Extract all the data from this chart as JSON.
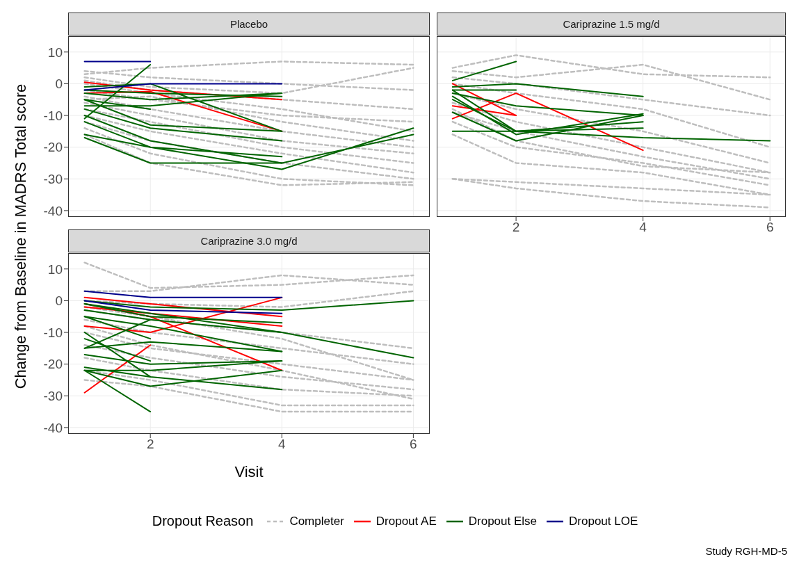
{
  "chart_data": [
    {
      "type": "line",
      "title": "Placebo",
      "ylabel": "Change from Baseline in MADRS Total score",
      "legend": "bottom",
      "legend_title": "Dropout Reason",
      "annotations": [
        "Study RGH-MD-5"
      ],
      "x": [
        1,
        2,
        4,
        6
      ],
      "xlim": [
        0.75,
        6.25
      ],
      "xticks": [
        2,
        4,
        6
      ],
      "ylim": [
        -42,
        15
      ],
      "yticks": [
        -40,
        -30,
        -20,
        -10,
        0,
        10
      ],
      "grid": true,
      "tick_labels": "y",
      "marker": "none",
      "series": [
        {
          "name": "Completer",
          "color": "#bebebe",
          "line_style": "dashed",
          "values": [
            4,
            2,
            0,
            -2
          ]
        },
        {
          "color": "#bebebe",
          "line_style": "dashed",
          "values": [
            3,
            5,
            7,
            6
          ]
        },
        {
          "color": "#bebebe",
          "line_style": "dashed",
          "values": [
            1,
            -2,
            -5,
            -8
          ]
        },
        {
          "color": "#bebebe",
          "line_style": "dashed",
          "values": [
            0,
            -3,
            -8,
            -15
          ]
        },
        {
          "color": "#bebebe",
          "line_style": "dashed",
          "values": [
            -2,
            -5,
            -10,
            -12
          ]
        },
        {
          "color": "#bebebe",
          "line_style": "dashed",
          "values": [
            -4,
            -8,
            -15,
            -20
          ]
        },
        {
          "color": "#bebebe",
          "line_style": "dashed",
          "values": [
            -6,
            -10,
            -18,
            -22
          ]
        },
        {
          "color": "#bebebe",
          "line_style": "dashed",
          "values": [
            -8,
            -12,
            -20,
            -25
          ]
        },
        {
          "color": "#bebebe",
          "line_style": "dashed",
          "values": [
            -10,
            -15,
            -22,
            -28
          ]
        },
        {
          "color": "#bebebe",
          "line_style": "dashed",
          "values": [
            -12,
            -18,
            -25,
            -30
          ]
        },
        {
          "color": "#bebebe",
          "line_style": "dashed",
          "values": [
            -14,
            -22,
            -30,
            -32
          ]
        },
        {
          "color": "#bebebe",
          "line_style": "dashed",
          "values": [
            -16,
            -25,
            -32,
            -31
          ]
        },
        {
          "color": "#bebebe",
          "line_style": "dashed",
          "values": [
            2,
            -1,
            -3,
            5
          ]
        },
        {
          "color": "#bebebe",
          "line_style": "dashed",
          "values": [
            -5,
            -4,
            -12,
            -18
          ]
        },
        {
          "name": "Dropout AE",
          "color": "#ff0000",
          "line_style": "solid",
          "values": [
            0.5,
            -2,
            -5,
            null
          ]
        },
        {
          "color": "#ff0000",
          "line_style": "solid",
          "values": [
            -3,
            -2.5,
            -15,
            null
          ]
        },
        {
          "name": "Dropout Else",
          "color": "#006400",
          "line_style": "solid",
          "values": [
            -11,
            6,
            null,
            null
          ]
        },
        {
          "color": "#006400",
          "line_style": "solid",
          "values": [
            -1,
            0,
            -15,
            null
          ]
        },
        {
          "color": "#006400",
          "line_style": "solid",
          "values": [
            -2,
            -3,
            -4,
            null
          ]
        },
        {
          "color": "#006400",
          "line_style": "solid",
          "values": [
            -3,
            -5,
            -3,
            null
          ]
        },
        {
          "color": "#006400",
          "line_style": "solid",
          "values": [
            -5,
            -8,
            null,
            null
          ]
        },
        {
          "color": "#006400",
          "line_style": "solid",
          "values": [
            -7,
            -7,
            -3,
            null
          ]
        },
        {
          "color": "#006400",
          "line_style": "solid",
          "values": [
            -5,
            -13,
            -15,
            null
          ]
        },
        {
          "color": "#006400",
          "line_style": "solid",
          "values": [
            -8,
            -14,
            -18,
            null
          ]
        },
        {
          "color": "#006400",
          "line_style": "solid",
          "values": [
            -12,
            -20,
            -23,
            null
          ]
        },
        {
          "color": "#006400",
          "line_style": "solid",
          "values": [
            -10,
            -18,
            -25,
            null
          ]
        },
        {
          "color": "#006400",
          "line_style": "solid",
          "values": [
            -16,
            -20,
            -27,
            -14
          ]
        },
        {
          "color": "#006400",
          "line_style": "solid",
          "values": [
            -17,
            -25,
            -25,
            -16
          ]
        },
        {
          "name": "Dropout LOE",
          "color": "#00008b",
          "line_style": "solid",
          "values": [
            7,
            7,
            null,
            null
          ]
        },
        {
          "color": "#00008b",
          "line_style": "solid",
          "values": [
            -2,
            0,
            0,
            null
          ]
        }
      ]
    },
    {
      "type": "line",
      "title": "Cariprazine 1.5 mg/d",
      "x": [
        1,
        2,
        4,
        6
      ],
      "xlim": [
        0.75,
        6.25
      ],
      "xticks": [
        2,
        4,
        6
      ],
      "ylim": [
        -42,
        15
      ],
      "yticks": [
        -40,
        -30,
        -20,
        -10,
        0,
        10
      ],
      "grid": true,
      "tick_labels": "x",
      "marker": "none",
      "series": [
        {
          "color": "#bebebe",
          "line_style": "dashed",
          "values": [
            5,
            9,
            3,
            2
          ]
        },
        {
          "color": "#bebebe",
          "line_style": "dashed",
          "values": [
            4,
            2,
            6,
            -5
          ]
        },
        {
          "color": "#bebebe",
          "line_style": "dashed",
          "values": [
            2,
            0,
            -5,
            -10
          ]
        },
        {
          "color": "#bebebe",
          "line_style": "dashed",
          "values": [
            0,
            -3,
            -8,
            -20
          ]
        },
        {
          "color": "#bebebe",
          "line_style": "dashed",
          "values": [
            -3,
            -8,
            -15,
            -25
          ]
        },
        {
          "color": "#bebebe",
          "line_style": "dashed",
          "values": [
            -6,
            -12,
            -20,
            -28
          ]
        },
        {
          "color": "#bebebe",
          "line_style": "dashed",
          "values": [
            -9,
            -15,
            -23,
            -30
          ]
        },
        {
          "color": "#bebebe",
          "line_style": "dashed",
          "values": [
            -12,
            -20,
            -25,
            -32
          ]
        },
        {
          "color": "#bebebe",
          "line_style": "dashed",
          "values": [
            -16,
            -25,
            -28,
            -35
          ]
        },
        {
          "color": "#bebebe",
          "line_style": "dashed",
          "values": [
            -30,
            -31,
            -33,
            -35
          ]
        },
        {
          "color": "#bebebe",
          "line_style": "dashed",
          "values": [
            -30,
            -33,
            -37,
            -39
          ]
        },
        {
          "color": "#bebebe",
          "line_style": "dashed",
          "values": [
            -8,
            -18,
            -26,
            -28
          ]
        },
        {
          "color": "#ff0000",
          "line_style": "solid",
          "values": [
            0,
            -10,
            null,
            null
          ]
        },
        {
          "color": "#ff0000",
          "line_style": "solid",
          "values": [
            -7,
            -10,
            null,
            null
          ]
        },
        {
          "color": "#ff0000",
          "line_style": "solid",
          "values": [
            -11,
            -3,
            -21,
            null
          ]
        },
        {
          "color": "#006400",
          "line_style": "solid",
          "values": [
            1,
            7,
            null,
            null
          ]
        },
        {
          "color": "#006400",
          "line_style": "solid",
          "values": [
            -1,
            0,
            -4,
            null
          ]
        },
        {
          "color": "#006400",
          "line_style": "solid",
          "values": [
            -2,
            -2,
            null,
            null
          ]
        },
        {
          "color": "#006400",
          "line_style": "solid",
          "values": [
            -3,
            -7,
            -10,
            null
          ]
        },
        {
          "color": "#006400",
          "line_style": "solid",
          "values": [
            -4,
            -16,
            -9.5,
            null
          ]
        },
        {
          "color": "#006400",
          "line_style": "solid",
          "values": [
            -2,
            -15,
            -12,
            null
          ]
        },
        {
          "color": "#006400",
          "line_style": "solid",
          "values": [
            -5,
            -15,
            -14,
            null
          ]
        },
        {
          "color": "#006400",
          "line_style": "solid",
          "values": [
            -9,
            -18,
            -10,
            null
          ]
        },
        {
          "color": "#006400",
          "line_style": "solid",
          "values": [
            -15,
            -15,
            -17,
            -18
          ]
        }
      ]
    },
    {
      "type": "line",
      "title": "Cariprazine 3.0 mg/d",
      "xlabel": "Visit",
      "x": [
        1,
        2,
        4,
        6
      ],
      "xlim": [
        0.75,
        6.25
      ],
      "xticks": [
        2,
        4,
        6
      ],
      "ylim": [
        -42,
        15
      ],
      "yticks": [
        -40,
        -30,
        -20,
        -10,
        0,
        10
      ],
      "grid": true,
      "marker": "none",
      "series": [
        {
          "color": "#bebebe",
          "line_style": "dashed",
          "values": [
            12,
            4,
            5,
            8
          ]
        },
        {
          "color": "#bebebe",
          "line_style": "dashed",
          "values": [
            3,
            3,
            8,
            5
          ]
        },
        {
          "color": "#bebebe",
          "line_style": "dashed",
          "values": [
            0,
            -1,
            -2,
            3
          ]
        },
        {
          "color": "#bebebe",
          "line_style": "dashed",
          "values": [
            -3,
            -6,
            -10,
            -15
          ]
        },
        {
          "color": "#bebebe",
          "line_style": "dashed",
          "values": [
            -6,
            -10,
            -15,
            -20
          ]
        },
        {
          "color": "#bebebe",
          "line_style": "dashed",
          "values": [
            -10,
            -15,
            -20,
            -25
          ]
        },
        {
          "color": "#bebebe",
          "line_style": "dashed",
          "values": [
            -14,
            -18,
            -24,
            -28
          ]
        },
        {
          "color": "#bebebe",
          "line_style": "dashed",
          "values": [
            -18,
            -22,
            -28,
            -30
          ]
        },
        {
          "color": "#bebebe",
          "line_style": "dashed",
          "values": [
            -22,
            -25,
            -33,
            -33
          ]
        },
        {
          "color": "#bebebe",
          "line_style": "dashed",
          "values": [
            -25,
            -27,
            -35,
            -35
          ]
        },
        {
          "color": "#bebebe",
          "line_style": "dashed",
          "values": [
            -2,
            -5,
            -12,
            -25
          ]
        },
        {
          "color": "#bebebe",
          "line_style": "dashed",
          "values": [
            -8,
            -14,
            -22,
            -31
          ]
        },
        {
          "color": "#ff0000",
          "line_style": "solid",
          "values": [
            1,
            -1,
            -5,
            null
          ]
        },
        {
          "color": "#ff0000",
          "line_style": "solid",
          "values": [
            -8,
            -10,
            1,
            null
          ]
        },
        {
          "color": "#ff0000",
          "line_style": "solid",
          "values": [
            -2,
            -4,
            -8,
            null
          ]
        },
        {
          "color": "#ff0000",
          "line_style": "solid",
          "values": [
            -29,
            -14,
            null,
            null
          ]
        },
        {
          "color": "#ff0000",
          "line_style": "solid",
          "values": [
            -1,
            -5,
            -22,
            null
          ]
        },
        {
          "color": "#006400",
          "line_style": "solid",
          "values": [
            0,
            -2,
            -3,
            0
          ]
        },
        {
          "color": "#006400",
          "line_style": "solid",
          "values": [
            -1,
            -4,
            -10,
            -18
          ]
        },
        {
          "color": "#006400",
          "line_style": "solid",
          "values": [
            -1,
            -5,
            -7,
            null
          ]
        },
        {
          "color": "#006400",
          "line_style": "solid",
          "values": [
            -3,
            -6,
            -10,
            null
          ]
        },
        {
          "color": "#006400",
          "line_style": "solid",
          "values": [
            -5,
            -8,
            -16,
            null
          ]
        },
        {
          "color": "#006400",
          "line_style": "solid",
          "values": [
            -15,
            -13,
            -16,
            null
          ]
        },
        {
          "color": "#006400",
          "line_style": "solid",
          "values": [
            -17,
            -20,
            -19,
            null
          ]
        },
        {
          "color": "#006400",
          "line_style": "solid",
          "values": [
            -22,
            -22,
            -19,
            null
          ]
        },
        {
          "color": "#006400",
          "line_style": "solid",
          "values": [
            -22,
            -27,
            -22,
            null
          ]
        },
        {
          "color": "#006400",
          "line_style": "solid",
          "values": [
            -22,
            -35,
            null,
            null
          ]
        },
        {
          "color": "#006400",
          "line_style": "solid",
          "values": [
            -10,
            -24,
            null,
            null
          ]
        },
        {
          "color": "#006400",
          "line_style": "solid",
          "values": [
            -12,
            -19,
            null,
            null
          ]
        },
        {
          "color": "#006400",
          "line_style": "solid",
          "values": [
            -5,
            -12,
            null,
            null
          ]
        },
        {
          "color": "#006400",
          "line_style": "solid",
          "values": [
            -15,
            -6,
            null,
            null
          ]
        },
        {
          "color": "#006400",
          "line_style": "solid",
          "values": [
            -21,
            -24,
            -28,
            null
          ]
        },
        {
          "color": "#00008b",
          "line_style": "solid",
          "values": [
            3,
            1,
            1,
            null
          ]
        },
        {
          "color": "#00008b",
          "line_style": "solid",
          "values": [
            0,
            -3,
            -4,
            null
          ]
        }
      ]
    }
  ]
}
